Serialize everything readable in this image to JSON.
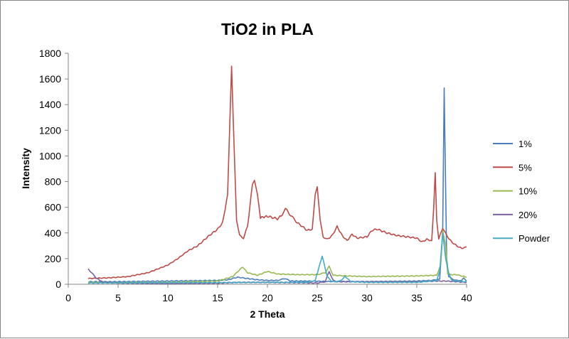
{
  "chart_data": {
    "type": "line",
    "title": "TiO2 in PLA",
    "xlabel": "2 Theta",
    "ylabel": "Intensity",
    "xlim": [
      0,
      40
    ],
    "ylim": [
      0,
      1800
    ],
    "xticks": [
      "0",
      "5",
      "10",
      "15",
      "20",
      "25",
      "30",
      "35",
      "40"
    ],
    "yticks": [
      "0",
      "200",
      "400",
      "600",
      "800",
      "1000",
      "1200",
      "1400",
      "1600",
      "1800"
    ],
    "grid": false,
    "legend_position": "right",
    "series": [
      {
        "name": "1%",
        "color": "#4a7ebb",
        "x": [
          2,
          5,
          10,
          15,
          16,
          17,
          18,
          19,
          20,
          21,
          21.8,
          22.3,
          24,
          26,
          30,
          35,
          36.5,
          37.3,
          37.6,
          37.75,
          37.85,
          38,
          38.2,
          38.6,
          39,
          39.5,
          39.7,
          40
        ],
        "y": [
          20,
          20,
          25,
          30,
          35,
          55,
          45,
          35,
          30,
          30,
          45,
          25,
          25,
          22,
          20,
          25,
          30,
          40,
          400,
          1530,
          1000,
          200,
          60,
          40,
          30,
          30,
          50,
          25
        ]
      },
      {
        "name": "5%",
        "color": "#be4b48",
        "x": [
          2,
          4,
          6,
          8,
          10,
          11,
          12,
          13,
          14,
          15,
          15.5,
          16,
          16.2,
          16.4,
          16.6,
          16.9,
          17.2,
          17.6,
          18,
          18.5,
          18.7,
          19,
          19.3,
          20,
          21,
          21.5,
          21.8,
          22.2,
          23,
          24,
          24.5,
          24.8,
          25,
          25.3,
          25.6,
          26,
          26.5,
          27,
          27.5,
          28,
          28.5,
          29,
          30,
          30.5,
          31,
          32,
          33,
          34,
          35,
          35.5,
          36,
          36.5,
          36.7,
          36.85,
          37,
          37.2,
          37.6,
          38,
          38.5,
          39,
          39.5,
          40
        ],
        "y": [
          45,
          50,
          60,
          90,
          150,
          200,
          260,
          300,
          370,
          430,
          480,
          700,
          1200,
          1700,
          1200,
          500,
          380,
          360,
          450,
          780,
          810,
          700,
          520,
          530,
          510,
          540,
          590,
          550,
          480,
          420,
          430,
          700,
          760,
          500,
          370,
          350,
          380,
          450,
          380,
          340,
          390,
          360,
          370,
          420,
          430,
          400,
          380,
          370,
          360,
          330,
          350,
          340,
          600,
          870,
          500,
          350,
          440,
          380,
          330,
          300,
          280,
          290
        ]
      },
      {
        "name": "10%",
        "color": "#98b954",
        "x": [
          2,
          5,
          10,
          15,
          16.5,
          17.5,
          18,
          19,
          20,
          21,
          23,
          25,
          25.8,
          26.2,
          26.6,
          28,
          30,
          35,
          37,
          37.4,
          37.6,
          37.9,
          38.1,
          38.5,
          39,
          40
        ],
        "y": [
          15,
          12,
          15,
          25,
          60,
          135,
          90,
          70,
          100,
          80,
          75,
          75,
          90,
          140,
          70,
          65,
          60,
          65,
          70,
          150,
          420,
          300,
          80,
          75,
          75,
          55
        ]
      },
      {
        "name": "20%",
        "color": "#7d60a0",
        "x": [
          2,
          2.8,
          3.5,
          6,
          10,
          15,
          17,
          20,
          25,
          25.8,
          26.2,
          26.6,
          27,
          30,
          35,
          37,
          38,
          39,
          40
        ],
        "y": [
          120,
          50,
          15,
          8,
          5,
          8,
          15,
          15,
          10,
          20,
          100,
          30,
          20,
          20,
          20,
          25,
          25,
          20,
          15
        ]
      },
      {
        "name": "Powder",
        "color": "#46aac5",
        "x": [
          2,
          10,
          20,
          24,
          24.8,
          25.5,
          26,
          26.5,
          27.3,
          27.8,
          28.4,
          30,
          35,
          37,
          37.3,
          37.6,
          37.9,
          38.2,
          38.5,
          39,
          40
        ],
        "y": [
          10,
          12,
          15,
          15,
          30,
          220,
          60,
          20,
          25,
          60,
          20,
          15,
          15,
          30,
          100,
          400,
          200,
          90,
          30,
          25,
          20
        ]
      }
    ]
  }
}
